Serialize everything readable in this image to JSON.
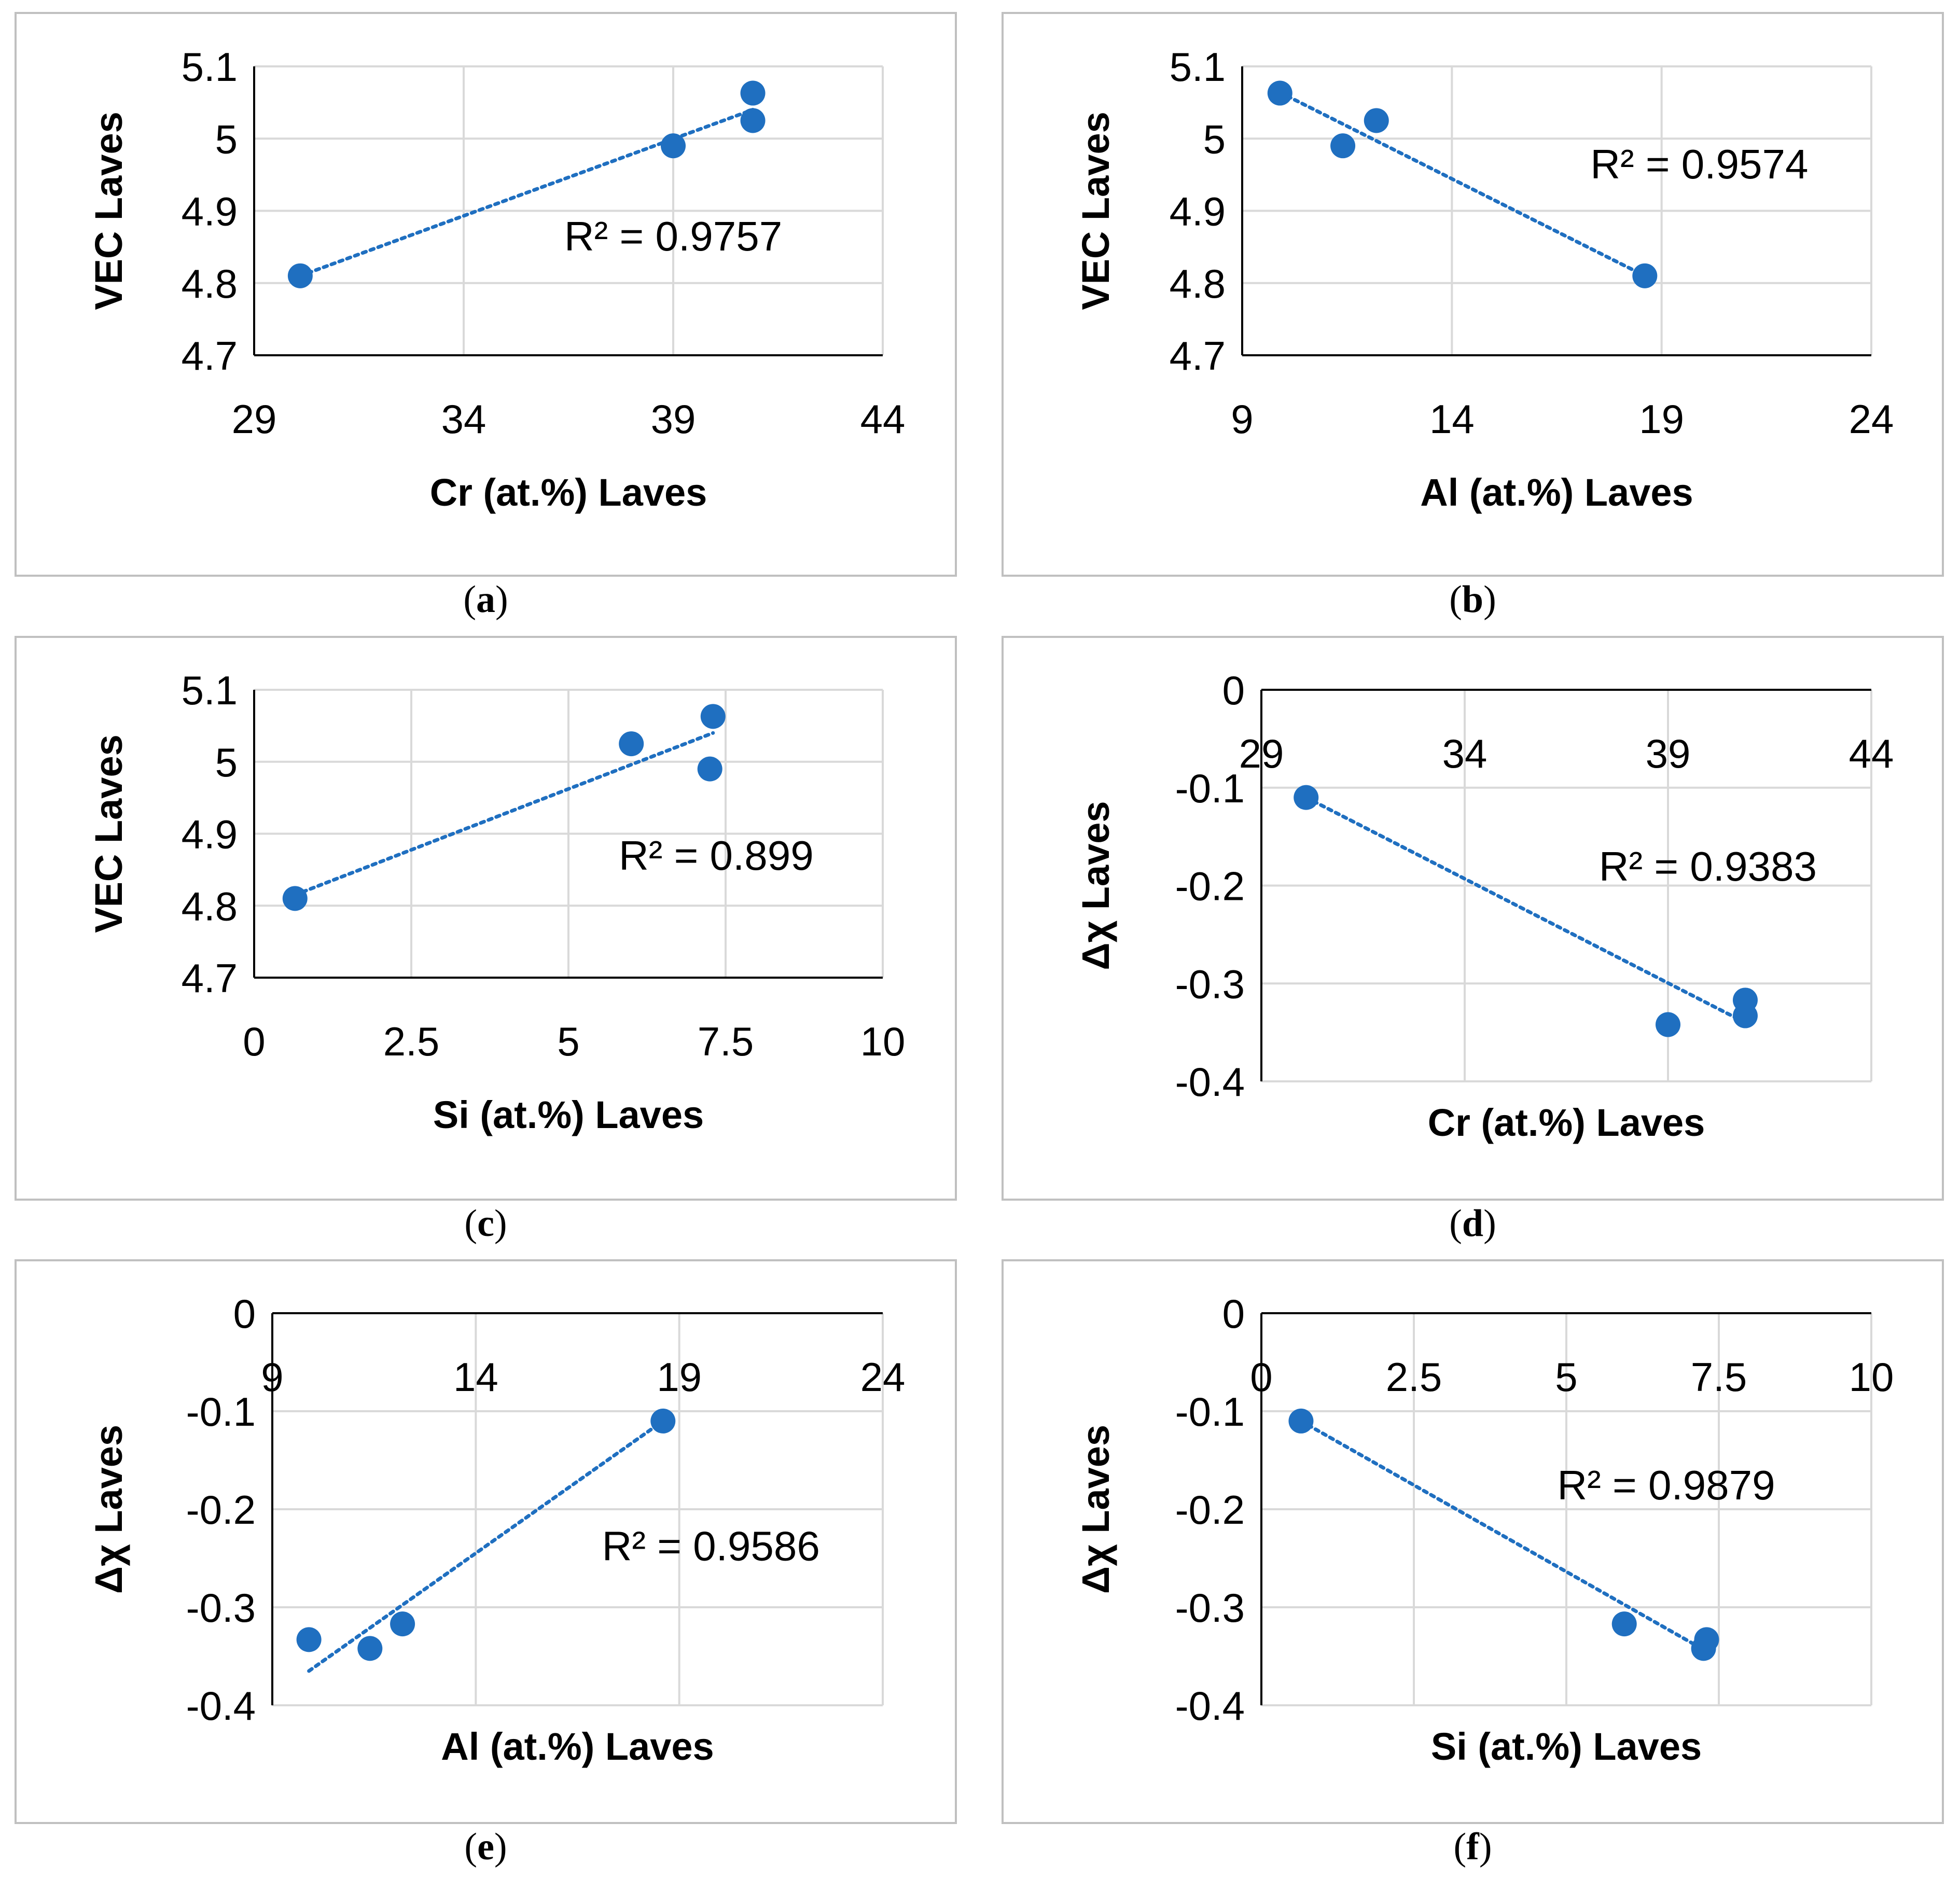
{
  "colors": {
    "accent": "#1F6FC0",
    "grid": "#D9D9D9",
    "axis": "#000000",
    "frame": "#C0C0C0"
  },
  "chart_data": [
    {
      "type": "scatter",
      "caption_letter": "a",
      "xlabel": "Cr (at.%) Laves",
      "ylabel": "VEC Laves",
      "xlim": [
        29,
        44
      ],
      "ylim": [
        4.7,
        5.1
      ],
      "xticks": [
        29,
        34,
        39,
        44
      ],
      "yticks": [
        4.7,
        4.8,
        4.9,
        5.0,
        5.1
      ],
      "xtick_labels": [
        "29",
        "34",
        "39",
        "44"
      ],
      "ytick_labels": [
        "4.7",
        "4.8",
        "4.9",
        "5",
        "5.1"
      ],
      "x_axis_at": "bottom",
      "points": [
        [
          30.1,
          4.81
        ],
        [
          39.0,
          4.99
        ],
        [
          40.9,
          5.025
        ],
        [
          40.9,
          5.063
        ]
      ],
      "trend": [
        [
          30.1,
          4.81
        ],
        [
          40.9,
          5.04
        ]
      ],
      "r2_label": "R² = 0.9757",
      "r2_anchor": [
        36.4,
        4.845
      ]
    },
    {
      "type": "scatter",
      "caption_letter": "b",
      "xlabel": "Al (at.%) Laves",
      "ylabel": "VEC Laves",
      "xlim": [
        9,
        24
      ],
      "ylim": [
        4.7,
        5.1
      ],
      "xticks": [
        9,
        14,
        19,
        24
      ],
      "yticks": [
        4.7,
        4.8,
        4.9,
        5.0,
        5.1
      ],
      "xtick_labels": [
        "9",
        "14",
        "19",
        "24"
      ],
      "ytick_labels": [
        "4.7",
        "4.8",
        "4.9",
        "5",
        "5.1"
      ],
      "x_axis_at": "bottom",
      "points": [
        [
          9.9,
          5.063
        ],
        [
          11.4,
          4.99
        ],
        [
          12.2,
          5.025
        ],
        [
          18.6,
          4.81
        ]
      ],
      "trend": [
        [
          9.9,
          5.064
        ],
        [
          18.6,
          4.81
        ]
      ],
      "r2_label": "R² = 0.9574",
      "r2_anchor": [
        17.3,
        4.945
      ]
    },
    {
      "type": "scatter",
      "caption_letter": "c",
      "xlabel": "Si (at.%) Laves",
      "ylabel": "VEC Laves",
      "xlim": [
        0,
        10
      ],
      "ylim": [
        4.7,
        5.1
      ],
      "xticks": [
        0,
        2.5,
        5,
        7.5,
        10
      ],
      "yticks": [
        4.7,
        4.8,
        4.9,
        5.0,
        5.1
      ],
      "xtick_labels": [
        "0",
        "2.5",
        "5",
        "7.5",
        "10"
      ],
      "ytick_labels": [
        "4.7",
        "4.8",
        "4.9",
        "5",
        "5.1"
      ],
      "x_axis_at": "bottom",
      "points": [
        [
          0.65,
          4.81
        ],
        [
          6.0,
          5.025
        ],
        [
          7.25,
          4.99
        ],
        [
          7.3,
          5.063
        ]
      ],
      "trend": [
        [
          0.65,
          4.815
        ],
        [
          7.3,
          5.04
        ]
      ],
      "r2_label": "R² = 0.899",
      "r2_anchor": [
        5.8,
        4.85
      ]
    },
    {
      "type": "scatter",
      "caption_letter": "d",
      "xlabel": "Cr (at.%) Laves",
      "ylabel": "Δχ Laves",
      "xlim": [
        29,
        44
      ],
      "ylim": [
        -0.4,
        0
      ],
      "xticks": [
        29,
        34,
        39,
        44
      ],
      "yticks": [
        -0.4,
        -0.3,
        -0.2,
        -0.1,
        0
      ],
      "xtick_labels": [
        "29",
        "34",
        "39",
        "44"
      ],
      "ytick_labels": [
        "-0.4",
        "-0.3",
        "-0.2",
        "-0.1",
        "0"
      ],
      "x_axis_at": "top",
      "points": [
        [
          30.1,
          -0.11
        ],
        [
          39.0,
          -0.342
        ],
        [
          40.9,
          -0.317
        ],
        [
          40.9,
          -0.333
        ]
      ],
      "trend": [
        [
          30.1,
          -0.11
        ],
        [
          40.9,
          -0.34
        ]
      ],
      "r2_label": "R² = 0.9383",
      "r2_anchor": [
        37.3,
        -0.195
      ]
    },
    {
      "type": "scatter",
      "caption_letter": "e",
      "xlabel": "Al (at.%) Laves",
      "ylabel": "Δχ Laves",
      "xlim": [
        9,
        24
      ],
      "ylim": [
        -0.4,
        0
      ],
      "xticks": [
        9,
        14,
        19,
        24
      ],
      "yticks": [
        -0.4,
        -0.3,
        -0.2,
        -0.1,
        0
      ],
      "xtick_labels": [
        "9",
        "14",
        "19",
        "24"
      ],
      "ytick_labels": [
        "-0.4",
        "-0.3",
        "-0.2",
        "-0.1",
        "0"
      ],
      "x_axis_at": "top",
      "points": [
        [
          9.9,
          -0.333
        ],
        [
          11.4,
          -0.342
        ],
        [
          12.2,
          -0.317
        ],
        [
          18.6,
          -0.11
        ]
      ],
      "trend": [
        [
          9.9,
          -0.365
        ],
        [
          18.6,
          -0.11
        ]
      ],
      "r2_label": "R² = 0.9586",
      "r2_anchor": [
        17.1,
        -0.252
      ]
    },
    {
      "type": "scatter",
      "caption_letter": "f",
      "xlabel": "Si (at.%) Laves",
      "ylabel": "Δχ Laves",
      "xlim": [
        0,
        10
      ],
      "ylim": [
        -0.4,
        0
      ],
      "xticks": [
        0,
        2.5,
        5,
        7.5,
        10
      ],
      "yticks": [
        -0.4,
        -0.3,
        -0.2,
        -0.1,
        0
      ],
      "xtick_labels": [
        "0",
        "2.5",
        "5",
        "7.5",
        "10"
      ],
      "ytick_labels": [
        "-0.4",
        "-0.3",
        "-0.2",
        "-0.1",
        "0"
      ],
      "x_axis_at": "top",
      "points": [
        [
          0.65,
          -0.11
        ],
        [
          5.95,
          -0.317
        ],
        [
          7.25,
          -0.342
        ],
        [
          7.3,
          -0.333
        ]
      ],
      "trend": [
        [
          0.65,
          -0.11
        ],
        [
          7.3,
          -0.345
        ]
      ],
      "r2_label": "R² = 0.9879",
      "r2_anchor": [
        4.85,
        -0.19
      ]
    }
  ]
}
